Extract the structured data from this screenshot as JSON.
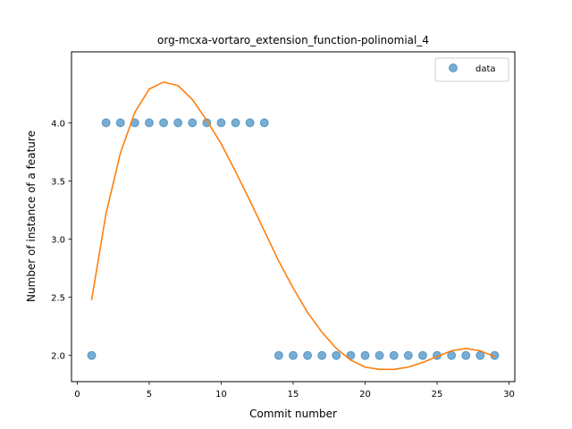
{
  "chart_data": {
    "type": "scatter",
    "title": "org-mcxa-vortaro_extension_function-polinomial_4",
    "xlabel": "Commit number",
    "ylabel": "Number of instance of a feature",
    "xlim": [
      -0.4,
      30.4
    ],
    "ylim": [
      1.775,
      4.61
    ],
    "xticks": [
      0,
      5,
      10,
      15,
      20,
      25,
      30
    ],
    "yticks": [
      2.0,
      2.5,
      3.0,
      3.5,
      4.0
    ],
    "legend_position": "top-right",
    "series": [
      {
        "name": "data",
        "kind": "scatter",
        "color": "#1f77b4",
        "x": [
          1,
          2,
          3,
          4,
          5,
          6,
          7,
          8,
          9,
          10,
          11,
          12,
          13,
          14,
          15,
          16,
          17,
          18,
          19,
          20,
          21,
          22,
          23,
          24,
          25,
          26,
          27,
          28,
          29
        ],
        "y": [
          2,
          4,
          4,
          4,
          4,
          4,
          4,
          4,
          4,
          4,
          4,
          4,
          4,
          2,
          2,
          2,
          2,
          2,
          2,
          2,
          2,
          2,
          2,
          2,
          2,
          2,
          2,
          2,
          2
        ]
      },
      {
        "kind": "line",
        "color": "#ff7f0e",
        "x": [
          1,
          2,
          3,
          4,
          5,
          6,
          7,
          8,
          9,
          10,
          11,
          12,
          13,
          14,
          15,
          16,
          17,
          18,
          19,
          20,
          21,
          22,
          23,
          24,
          25,
          26,
          27,
          28,
          29
        ],
        "y": [
          2.48,
          3.22,
          3.74,
          4.09,
          4.29,
          4.35,
          4.32,
          4.2,
          4.02,
          3.82,
          3.58,
          3.33,
          3.07,
          2.81,
          2.58,
          2.37,
          2.2,
          2.06,
          1.96,
          1.9,
          1.88,
          1.88,
          1.9,
          1.94,
          1.99,
          2.04,
          2.06,
          2.04,
          1.99
        ]
      }
    ]
  }
}
